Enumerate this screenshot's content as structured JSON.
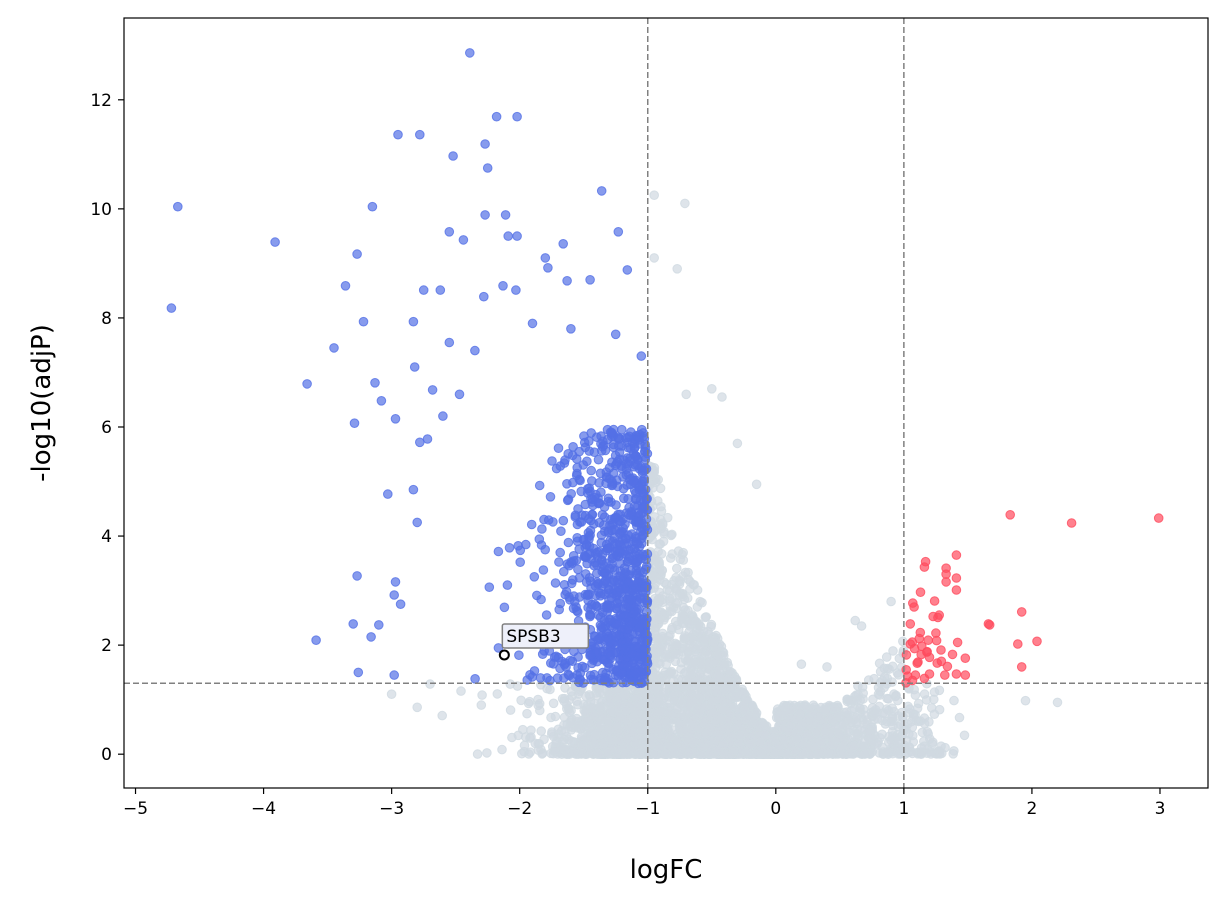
{
  "chart_data": {
    "type": "scatter",
    "subtype": "volcano",
    "title": "",
    "xlabel": "logFC",
    "ylabel": "-log10(adjP)",
    "xlim": [
      -5.09,
      3.375
    ],
    "ylim": [
      -0.62,
      13.5
    ],
    "xticks": [
      -5,
      -4,
      -3,
      -2,
      -1,
      0,
      1,
      2,
      3
    ],
    "xtick_labels": [
      "−5",
      "−4",
      "−3",
      "−2",
      "−1",
      "0",
      "1",
      "2",
      "3"
    ],
    "yticks": [
      0,
      2,
      4,
      6,
      8,
      10,
      12
    ],
    "ytick_labels": [
      "0",
      "2",
      "4",
      "6",
      "8",
      "10",
      "12"
    ],
    "grid": false,
    "thresholds": {
      "logFC": [
        -1,
        1
      ],
      "neg_log10_adjP": 1.3
    },
    "colors": {
      "down": "#5470e6",
      "up": "#ff4b5e",
      "ns": "#d0d9e1",
      "threshold_line": "#808080"
    },
    "series": [
      {
        "name": "down",
        "color": "#5470e6",
        "points": [
          [
            -4.67,
            10.04
          ],
          [
            -4.72,
            8.18
          ],
          [
            -3.91,
            9.39
          ],
          [
            -3.66,
            6.79
          ],
          [
            -3.36,
            8.59
          ],
          [
            -3.45,
            7.45
          ],
          [
            -3.27,
            9.17
          ],
          [
            -3.15,
            10.04
          ],
          [
            -3.22,
            7.93
          ],
          [
            -3.13,
            6.81
          ],
          [
            -3.08,
            6.48
          ],
          [
            -3.29,
            6.07
          ],
          [
            -2.97,
            6.15
          ],
          [
            -3.03,
            4.77
          ],
          [
            -2.95,
            11.36
          ],
          [
            -2.78,
            11.36
          ],
          [
            -2.52,
            10.97
          ],
          [
            -2.39,
            12.86
          ],
          [
            -2.18,
            11.69
          ],
          [
            -2.02,
            11.69
          ],
          [
            -2.27,
            11.19
          ],
          [
            -2.25,
            10.75
          ],
          [
            -1.36,
            10.33
          ],
          [
            -2.27,
            9.89
          ],
          [
            -2.11,
            9.89
          ],
          [
            -2.55,
            9.58
          ],
          [
            -2.44,
            9.43
          ],
          [
            -2.09,
            9.5
          ],
          [
            -2.02,
            9.5
          ],
          [
            -1.66,
            9.36
          ],
          [
            -1.23,
            9.58
          ],
          [
            -1.8,
            9.1
          ],
          [
            -1.78,
            8.92
          ],
          [
            -2.75,
            8.51
          ],
          [
            -2.62,
            8.51
          ],
          [
            -2.83,
            7.93
          ],
          [
            -2.28,
            8.39
          ],
          [
            -2.13,
            8.59
          ],
          [
            -2.03,
            8.51
          ],
          [
            -1.16,
            8.88
          ],
          [
            -1.45,
            8.7
          ],
          [
            -1.63,
            8.68
          ],
          [
            -3.27,
            3.27
          ],
          [
            -3.59,
            2.09
          ],
          [
            -3.3,
            2.39
          ],
          [
            -3.26,
            1.5
          ],
          [
            -2.98,
            1.45
          ],
          [
            -3.16,
            2.15
          ],
          [
            -3.1,
            2.37
          ],
          [
            -2.97,
            3.16
          ],
          [
            -2.98,
            2.92
          ],
          [
            -2.93,
            2.75
          ],
          [
            -2.8,
            4.25
          ],
          [
            -2.83,
            4.85
          ],
          [
            -2.82,
            7.1
          ],
          [
            -2.68,
            6.68
          ],
          [
            -2.72,
            5.78
          ],
          [
            -2.78,
            5.72
          ],
          [
            -2.55,
            7.55
          ],
          [
            -2.35,
            7.4
          ],
          [
            -2.6,
            6.2
          ],
          [
            -2.47,
            6.6
          ],
          [
            -1.9,
            7.9
          ],
          [
            -1.6,
            7.8
          ],
          [
            -1.25,
            7.7
          ],
          [
            -1.05,
            7.3
          ]
        ]
      },
      {
        "name": "up",
        "color": "#ff4b5e",
        "points": [
          [
            1.83,
            4.39
          ],
          [
            2.31,
            4.24
          ],
          [
            2.99,
            4.33
          ],
          [
            1.41,
            3.65
          ],
          [
            1.17,
            3.53
          ],
          [
            1.16,
            3.43
          ],
          [
            1.33,
            3.41
          ],
          [
            1.33,
            3.3
          ],
          [
            1.41,
            3.23
          ],
          [
            1.33,
            3.16
          ],
          [
            1.41,
            3.01
          ],
          [
            1.13,
            2.97
          ],
          [
            1.24,
            2.81
          ],
          [
            1.07,
            2.77
          ],
          [
            1.08,
            2.7
          ],
          [
            1.92,
            2.61
          ],
          [
            1.66,
            2.39
          ],
          [
            1.67,
            2.37
          ],
          [
            1.05,
            2.39
          ],
          [
            1.25,
            2.22
          ],
          [
            1.19,
            2.09
          ],
          [
            1.42,
            2.05
          ],
          [
            1.89,
            2.02
          ],
          [
            2.04,
            2.07
          ],
          [
            1.92,
            1.6
          ],
          [
            1.05,
            2.02
          ],
          [
            1.14,
            1.98
          ],
          [
            1.29,
            1.91
          ],
          [
            1.38,
            1.83
          ],
          [
            1.48,
            1.76
          ],
          [
            1.02,
            1.82
          ],
          [
            1.11,
            1.69
          ],
          [
            1.26,
            1.67
          ],
          [
            1.34,
            1.61
          ],
          [
            1.41,
            1.47
          ],
          [
            1.48,
            1.45
          ],
          [
            1.32,
            1.45
          ],
          [
            1.09,
            1.45
          ],
          [
            1.03,
            1.43
          ],
          [
            1.16,
            1.39
          ],
          [
            1.2,
            1.47
          ]
        ]
      },
      {
        "name": "ns",
        "color": "#d0d9e1",
        "points": [
          [
            -0.95,
            10.25
          ],
          [
            -0.71,
            10.1
          ],
          [
            -0.77,
            8.9
          ],
          [
            -0.95,
            9.1
          ],
          [
            -0.7,
            6.6
          ],
          [
            -0.5,
            6.7
          ],
          [
            -0.42,
            6.55
          ],
          [
            -0.3,
            5.7
          ],
          [
            -0.15,
            4.95
          ],
          [
            1.95,
            0.98
          ],
          [
            2.2,
            0.95
          ],
          [
            0.2,
            1.65
          ],
          [
            0.4,
            1.6
          ],
          [
            0.62,
            2.45
          ],
          [
            0.67,
            2.35
          ],
          [
            0.9,
            2.8
          ],
          [
            -2.8,
            0.86
          ],
          [
            -3.0,
            1.1
          ],
          [
            -2.3,
            0.9
          ],
          [
            -1.6,
            0.58
          ],
          [
            -1.75,
            0.37
          ]
        ]
      }
    ],
    "generated_cloud": {
      "n": 5500,
      "seed": 7,
      "note": "dense background of genes, coloured by threshold"
    },
    "annotations": [
      {
        "text": "SPSB3",
        "x": -2.12,
        "y": 1.82
      }
    ]
  }
}
